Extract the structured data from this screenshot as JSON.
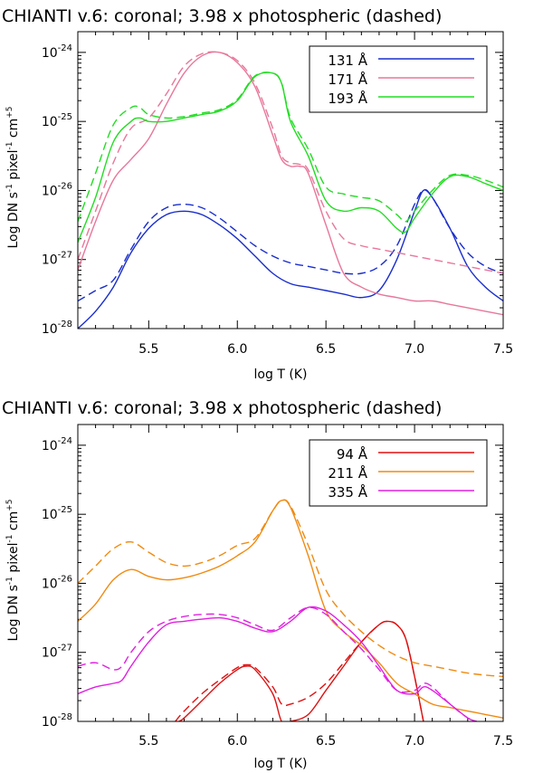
{
  "chart_data": [
    {
      "type": "line",
      "title": "CHIANTI v.6: coronal; 3.98 x photospheric (dashed)",
      "xlabel": "log T (K)",
      "ylabel_parts": [
        "Log DN s",
        "-1",
        " pixel",
        "-1",
        " cm",
        "+5"
      ],
      "xlim": [
        5.1,
        7.5
      ],
      "ylim_log10": [
        -28,
        -23.7
      ],
      "x_ticks": [
        "5.5",
        "6.0",
        "6.5",
        "7.0",
        "7.5"
      ],
      "x_tick_values": [
        5.5,
        6.0,
        6.5,
        7.0,
        7.5
      ],
      "y_ticks": [
        {
          "base": "10",
          "exp": "-28",
          "value": -28
        },
        {
          "base": "10",
          "exp": "-27",
          "value": -27
        },
        {
          "base": "10",
          "exp": "-26",
          "value": -26
        },
        {
          "base": "10",
          "exp": "-25",
          "value": -25
        },
        {
          "base": "10",
          "exp": "-24",
          "value": -24
        }
      ],
      "legend": [
        {
          "label": "131 Å",
          "color": "#1a2ecc"
        },
        {
          "label": "171 Å",
          "color": "#e8779a"
        },
        {
          "label": "193 Å",
          "color": "#22dd22"
        }
      ],
      "series": [
        {
          "name": "131 Å",
          "style": "solid",
          "color": "#1a2ecc",
          "x": [
            5.1,
            5.2,
            5.3,
            5.4,
            5.5,
            5.6,
            5.7,
            5.8,
            5.9,
            6.0,
            6.1,
            6.2,
            6.3,
            6.4,
            6.5,
            6.6,
            6.7,
            6.8,
            6.9,
            7.0,
            7.05,
            7.1,
            7.2,
            7.3,
            7.4,
            7.5
          ],
          "y": [
            -28.0,
            -27.75,
            -27.4,
            -26.9,
            -26.55,
            -26.35,
            -26.3,
            -26.35,
            -26.5,
            -26.7,
            -26.95,
            -27.2,
            -27.35,
            -27.4,
            -27.45,
            -27.5,
            -27.55,
            -27.45,
            -27.0,
            -26.3,
            -26.0,
            -26.1,
            -26.55,
            -27.1,
            -27.4,
            -27.6
          ]
        },
        {
          "name": "131 Å",
          "style": "dashed",
          "color": "#1a2ecc",
          "x": [
            5.1,
            5.2,
            5.3,
            5.4,
            5.5,
            5.6,
            5.7,
            5.8,
            5.9,
            6.0,
            6.1,
            6.2,
            6.3,
            6.4,
            6.5,
            6.6,
            6.7,
            6.8,
            6.9,
            7.0,
            7.05,
            7.1,
            7.2,
            7.3,
            7.4,
            7.5
          ],
          "y": [
            -27.6,
            -27.45,
            -27.3,
            -26.85,
            -26.45,
            -26.25,
            -26.2,
            -26.25,
            -26.4,
            -26.6,
            -26.8,
            -26.95,
            -27.05,
            -27.1,
            -27.15,
            -27.2,
            -27.2,
            -27.1,
            -26.8,
            -26.2,
            -26.0,
            -26.1,
            -26.55,
            -26.9,
            -27.1,
            -27.2
          ]
        },
        {
          "name": "171 Å",
          "style": "solid",
          "color": "#e8779a",
          "x": [
            5.1,
            5.2,
            5.3,
            5.4,
            5.5,
            5.6,
            5.7,
            5.8,
            5.9,
            6.0,
            6.1,
            6.2,
            6.25,
            6.3,
            6.35,
            6.4,
            6.5,
            6.6,
            6.7,
            6.8,
            6.9,
            7.0,
            7.1,
            7.2,
            7.3,
            7.4,
            7.5
          ],
          "y": [
            -27.15,
            -26.45,
            -25.85,
            -25.55,
            -25.25,
            -24.75,
            -24.3,
            -24.05,
            -24.0,
            -24.15,
            -24.5,
            -25.2,
            -25.55,
            -25.65,
            -25.65,
            -25.75,
            -26.5,
            -27.2,
            -27.4,
            -27.5,
            -27.55,
            -27.6,
            -27.6,
            -27.65,
            -27.7,
            -27.75,
            -27.8
          ]
        },
        {
          "name": "171 Å",
          "style": "dashed",
          "color": "#e8779a",
          "x": [
            5.1,
            5.2,
            5.3,
            5.4,
            5.5,
            5.6,
            5.7,
            5.8,
            5.9,
            6.0,
            6.1,
            6.2,
            6.25,
            6.3,
            6.35,
            6.4,
            6.5,
            6.6,
            6.7,
            6.8,
            6.9,
            7.0,
            7.1,
            7.2,
            7.3,
            7.4,
            7.5
          ],
          "y": [
            -27.0,
            -26.3,
            -25.6,
            -25.1,
            -24.95,
            -24.6,
            -24.2,
            -24.02,
            -24.0,
            -24.12,
            -24.45,
            -25.1,
            -25.5,
            -25.6,
            -25.62,
            -25.7,
            -26.3,
            -26.7,
            -26.8,
            -26.85,
            -26.9,
            -26.95,
            -27.0,
            -27.05,
            -27.1,
            -27.15,
            -27.2
          ]
        },
        {
          "name": "193 Å",
          "style": "solid",
          "color": "#22dd22",
          "x": [
            5.1,
            5.2,
            5.3,
            5.4,
            5.45,
            5.5,
            5.6,
            5.7,
            5.8,
            5.9,
            6.0,
            6.1,
            6.2,
            6.25,
            6.3,
            6.4,
            6.5,
            6.6,
            6.7,
            6.8,
            6.9,
            6.95,
            7.0,
            7.1,
            7.2,
            7.3,
            7.4,
            7.5
          ],
          "y": [
            -26.75,
            -26.1,
            -25.3,
            -25.0,
            -24.95,
            -25.0,
            -25.0,
            -24.95,
            -24.9,
            -24.85,
            -24.7,
            -24.35,
            -24.3,
            -24.45,
            -25.0,
            -25.5,
            -26.15,
            -26.3,
            -26.25,
            -26.3,
            -26.55,
            -26.6,
            -26.4,
            -26.05,
            -25.8,
            -25.8,
            -25.9,
            -26.0
          ]
        },
        {
          "name": "193 Å",
          "style": "dashed",
          "color": "#22dd22",
          "x": [
            5.1,
            5.2,
            5.3,
            5.4,
            5.45,
            5.5,
            5.6,
            5.7,
            5.8,
            5.9,
            6.0,
            6.1,
            6.2,
            6.25,
            6.3,
            6.4,
            6.5,
            6.6,
            6.7,
            6.8,
            6.9,
            6.95,
            7.0,
            7.1,
            7.2,
            7.3,
            7.4,
            7.5
          ],
          "y": [
            -26.45,
            -25.75,
            -25.05,
            -24.8,
            -24.8,
            -24.9,
            -24.95,
            -24.93,
            -24.88,
            -24.83,
            -24.68,
            -24.34,
            -24.3,
            -24.45,
            -24.95,
            -25.4,
            -25.95,
            -26.05,
            -26.1,
            -26.15,
            -26.35,
            -26.45,
            -26.3,
            -26.0,
            -25.78,
            -25.78,
            -25.85,
            -25.95
          ]
        }
      ]
    },
    {
      "type": "line",
      "title": "CHIANTI v.6: coronal; 3.98 x photospheric (dashed)",
      "xlabel": "log T (K)",
      "ylabel_parts": [
        "Log DN s",
        "-1",
        " pixel",
        "-1",
        " cm",
        "+5"
      ],
      "xlim": [
        5.1,
        7.5
      ],
      "ylim_log10": [
        -28,
        -23.7
      ],
      "x_ticks": [
        "5.5",
        "6.0",
        "6.5",
        "7.0",
        "7.5"
      ],
      "x_tick_values": [
        5.5,
        6.0,
        6.5,
        7.0,
        7.5
      ],
      "y_ticks": [
        {
          "base": "10",
          "exp": "-28",
          "value": -28
        },
        {
          "base": "10",
          "exp": "-27",
          "value": -27
        },
        {
          "base": "10",
          "exp": "-26",
          "value": -26
        },
        {
          "base": "10",
          "exp": "-25",
          "value": -25
        },
        {
          "base": "10",
          "exp": "-24",
          "value": -24
        }
      ],
      "legend": [
        {
          "label": "94 Å",
          "color": "#dd1111"
        },
        {
          "label": "211 Å",
          "color": "#f08a10"
        },
        {
          "label": "335 Å",
          "color": "#e020e0"
        }
      ],
      "series": [
        {
          "name": "94 Å",
          "style": "solid",
          "color": "#dd1111",
          "x": [
            5.67,
            5.7,
            5.8,
            5.9,
            6.0,
            6.05,
            6.1,
            6.2,
            6.25,
            6.3,
            6.4,
            6.5,
            6.6,
            6.7,
            6.8,
            6.85,
            6.9,
            6.95,
            7.0,
            7.05
          ],
          "y": [
            -28.0,
            -27.95,
            -27.7,
            -27.45,
            -27.25,
            -27.2,
            -27.25,
            -27.6,
            -28.0,
            -28.0,
            -27.9,
            -27.55,
            -27.2,
            -26.85,
            -26.6,
            -26.55,
            -26.6,
            -26.8,
            -27.35,
            -28.0
          ]
        },
        {
          "name": "94 Å",
          "style": "dashed",
          "color": "#dd1111",
          "x": [
            5.65,
            5.7,
            5.8,
            5.9,
            6.0,
            6.05,
            6.1,
            6.2,
            6.25,
            6.3,
            6.4,
            6.5,
            6.6,
            6.7,
            6.8,
            6.85,
            6.9,
            6.95,
            7.0,
            7.05
          ],
          "y": [
            -28.0,
            -27.85,
            -27.6,
            -27.4,
            -27.22,
            -27.18,
            -27.22,
            -27.5,
            -27.75,
            -27.75,
            -27.65,
            -27.45,
            -27.15,
            -26.85,
            -26.6,
            -26.55,
            -26.6,
            -26.8,
            -27.35,
            -28.0
          ]
        },
        {
          "name": "211 Å",
          "style": "solid",
          "color": "#f08a10",
          "x": [
            5.1,
            5.2,
            5.3,
            5.4,
            5.5,
            5.6,
            5.7,
            5.8,
            5.9,
            6.0,
            6.1,
            6.2,
            6.25,
            6.3,
            6.4,
            6.5,
            6.6,
            6.7,
            6.8,
            6.9,
            7.0,
            7.1,
            7.2,
            7.3,
            7.4,
            7.5
          ],
          "y": [
            -26.55,
            -26.3,
            -25.95,
            -25.8,
            -25.9,
            -25.95,
            -25.92,
            -25.85,
            -25.75,
            -25.6,
            -25.4,
            -24.95,
            -24.8,
            -24.9,
            -25.6,
            -26.4,
            -26.7,
            -26.9,
            -27.15,
            -27.45,
            -27.6,
            -27.75,
            -27.8,
            -27.85,
            -27.9,
            -27.95
          ]
        },
        {
          "name": "211 Å",
          "style": "dashed",
          "color": "#f08a10",
          "x": [
            5.1,
            5.2,
            5.3,
            5.4,
            5.5,
            5.6,
            5.7,
            5.8,
            5.9,
            6.0,
            6.1,
            6.2,
            6.25,
            6.3,
            6.4,
            6.5,
            6.6,
            6.7,
            6.8,
            6.9,
            7.0,
            7.1,
            7.2,
            7.3,
            7.4,
            7.5
          ],
          "y": [
            -26.0,
            -25.75,
            -25.5,
            -25.4,
            -25.55,
            -25.7,
            -25.75,
            -25.7,
            -25.6,
            -25.45,
            -25.35,
            -24.95,
            -24.8,
            -24.88,
            -25.45,
            -26.1,
            -26.45,
            -26.7,
            -26.9,
            -27.05,
            -27.15,
            -27.2,
            -27.25,
            -27.3,
            -27.33,
            -27.35
          ]
        },
        {
          "name": "335 Å",
          "style": "solid",
          "color": "#e020e0",
          "x": [
            5.1,
            5.2,
            5.3,
            5.35,
            5.4,
            5.5,
            5.6,
            5.7,
            5.8,
            5.9,
            6.0,
            6.1,
            6.2,
            6.3,
            6.4,
            6.5,
            6.6,
            6.7,
            6.8,
            6.9,
            7.0,
            7.05,
            7.1,
            7.2,
            7.3,
            7.35
          ],
          "y": [
            -27.6,
            -27.5,
            -27.45,
            -27.4,
            -27.2,
            -26.85,
            -26.6,
            -26.55,
            -26.52,
            -26.5,
            -26.55,
            -26.65,
            -26.7,
            -26.55,
            -26.35,
            -26.4,
            -26.6,
            -26.85,
            -27.2,
            -27.55,
            -27.6,
            -27.5,
            -27.55,
            -27.75,
            -27.95,
            -28.0
          ]
        },
        {
          "name": "335 Å",
          "style": "dashed",
          "color": "#e020e0",
          "x": [
            5.1,
            5.2,
            5.3,
            5.35,
            5.4,
            5.5,
            5.6,
            5.7,
            5.8,
            5.9,
            6.0,
            6.1,
            6.2,
            6.3,
            6.4,
            6.5,
            6.6,
            6.7,
            6.8,
            6.9,
            7.0,
            7.05,
            7.1,
            7.2,
            7.3,
            7.35
          ],
          "y": [
            -27.2,
            -27.15,
            -27.25,
            -27.2,
            -27.0,
            -26.7,
            -26.55,
            -26.48,
            -26.45,
            -26.45,
            -26.5,
            -26.6,
            -26.68,
            -26.5,
            -26.35,
            -26.45,
            -26.7,
            -26.95,
            -27.25,
            -27.55,
            -27.55,
            -27.45,
            -27.5,
            -27.75,
            -27.95,
            -28.0
          ]
        }
      ]
    }
  ]
}
